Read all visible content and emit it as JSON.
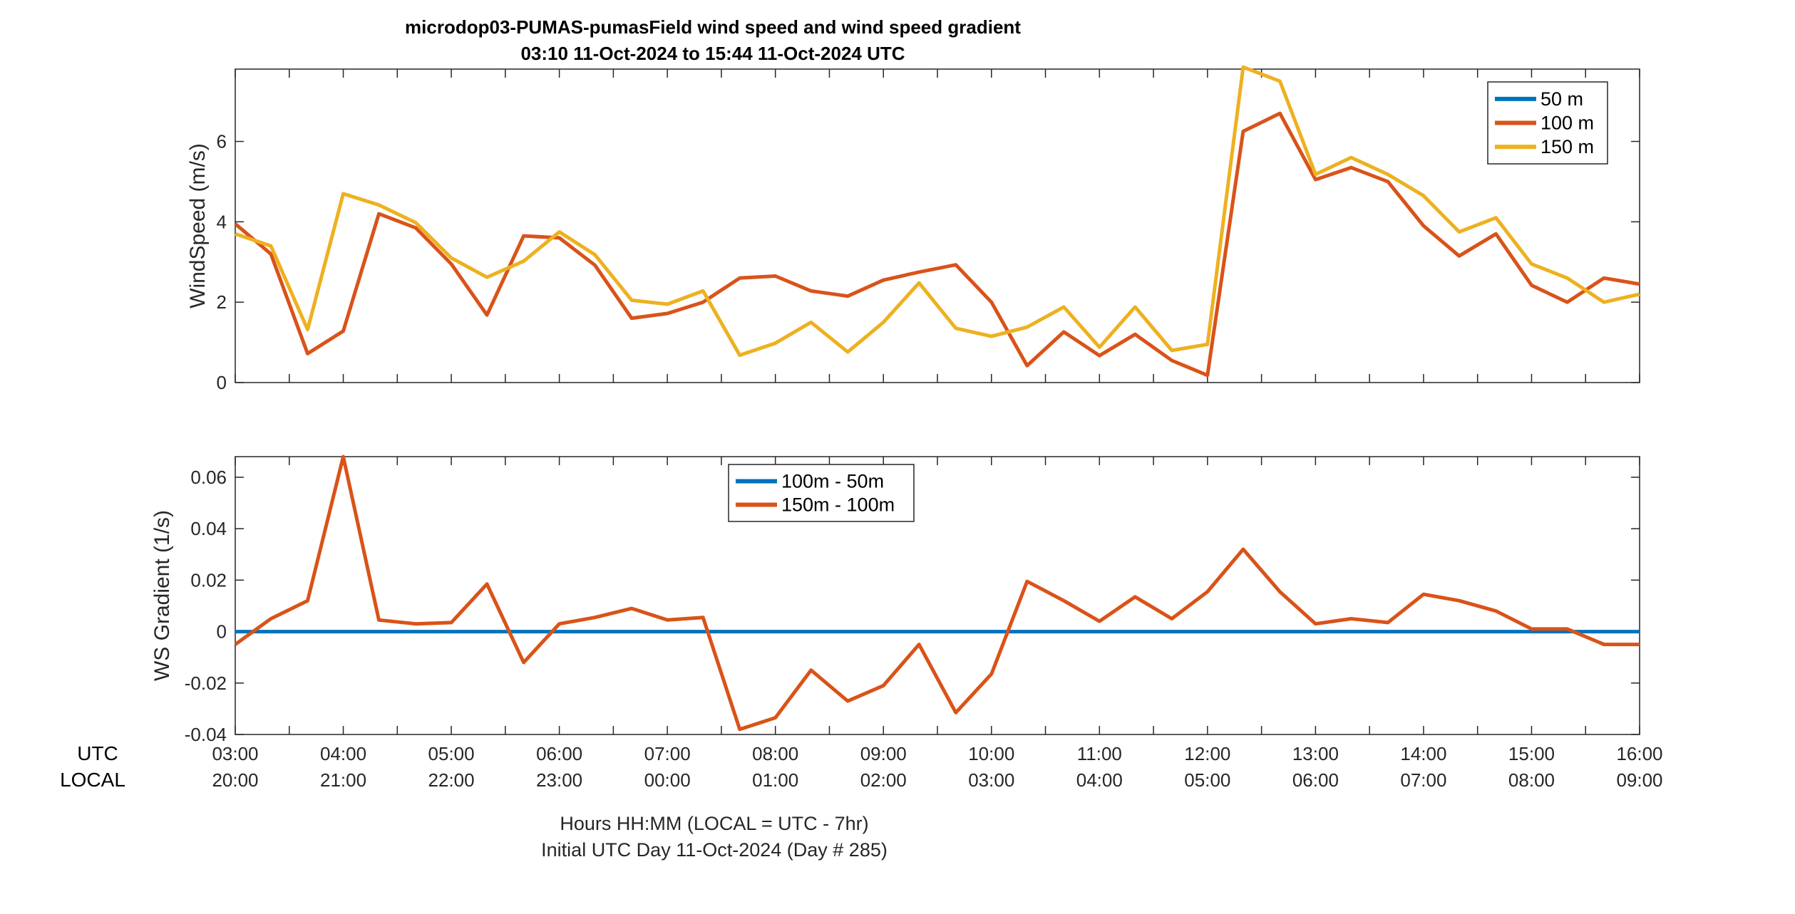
{
  "figure": {
    "title_line1": "microdop03-PUMAS-pumasField  wind speed and wind speed gradient",
    "title_line2": "03:10 11-Oct-2024 to 15:44 11-Oct-2024  UTC",
    "row_label_utc": "UTC",
    "row_label_local": "LOCAL",
    "xlabel_line1": "Hours HH:MM  (LOCAL = UTC - 7hr)",
    "xlabel_line2": "Initial UTC Day 11-Oct-2024 (Day # 285)"
  },
  "chart_data": [
    {
      "type": "line",
      "ylabel": "WindSpeed (m/s)",
      "xlim": [
        3.0,
        16.0
      ],
      "ylim": [
        0,
        7.8
      ],
      "yticks": [
        0,
        2,
        4,
        6
      ],
      "ytick_labels": [
        "0",
        "2",
        "4",
        "6"
      ],
      "grid": false,
      "legend_position": "top-right",
      "series": [
        {
          "name": "50 m",
          "color": "#0072BD",
          "x": [],
          "values": []
        },
        {
          "name": "100 m",
          "color": "#D95319",
          "x": [
            3.0,
            3.33,
            3.67,
            4.0,
            4.33,
            4.67,
            5.0,
            5.33,
            5.67,
            6.0,
            6.33,
            6.67,
            7.0,
            7.33,
            7.67,
            8.0,
            8.33,
            8.67,
            9.0,
            9.33,
            9.67,
            10.0,
            10.33,
            10.67,
            11.0,
            11.33,
            11.67,
            12.0,
            12.33,
            12.67,
            13.0,
            13.33,
            13.67,
            14.0,
            14.33,
            14.67,
            15.0,
            15.33,
            15.67,
            16.0
          ],
          "values": [
            3.95,
            3.2,
            0.72,
            1.28,
            4.2,
            3.85,
            2.95,
            1.68,
            3.65,
            3.6,
            2.92,
            1.6,
            1.72,
            2.0,
            2.6,
            2.65,
            2.28,
            2.15,
            2.55,
            2.75,
            2.93,
            2.0,
            0.42,
            1.26,
            0.67,
            1.2,
            0.55,
            0.18,
            6.25,
            6.7,
            5.05,
            5.35,
            5.0,
            3.9,
            3.15,
            3.7,
            2.42,
            2.0,
            2.6,
            2.45
          ]
        },
        {
          "name": "150 m",
          "color": "#EDB120",
          "x": [
            3.0,
            3.33,
            3.67,
            4.0,
            4.33,
            4.67,
            5.0,
            5.33,
            5.67,
            6.0,
            6.33,
            6.67,
            7.0,
            7.33,
            7.67,
            8.0,
            8.33,
            8.67,
            9.0,
            9.33,
            9.67,
            10.0,
            10.33,
            10.67,
            11.0,
            11.33,
            11.67,
            12.0,
            12.33,
            12.67,
            13.0,
            13.33,
            13.67,
            14.0,
            14.33,
            14.67,
            15.0,
            15.33,
            15.67,
            16.0
          ],
          "values": [
            3.7,
            3.4,
            1.32,
            4.7,
            4.42,
            3.98,
            3.1,
            2.62,
            3.02,
            3.75,
            3.18,
            2.05,
            1.95,
            2.28,
            0.68,
            0.98,
            1.5,
            0.76,
            1.5,
            2.48,
            1.35,
            1.15,
            1.38,
            1.88,
            0.88,
            1.88,
            0.8,
            0.95,
            7.85,
            7.5,
            5.18,
            5.6,
            5.18,
            4.65,
            3.75,
            4.1,
            2.95,
            2.6,
            2.0,
            2.2
          ]
        }
      ]
    },
    {
      "type": "line",
      "ylabel": "WS Gradient (1/s)",
      "xlim": [
        3.0,
        16.0
      ],
      "ylim": [
        -0.04,
        0.068
      ],
      "yticks": [
        -0.04,
        -0.02,
        0,
        0.02,
        0.04,
        0.06
      ],
      "ytick_labels": [
        "-0.04",
        "-0.02",
        "0",
        "0.02",
        "0.04",
        "0.06"
      ],
      "grid": false,
      "legend_position": "top-center",
      "series": [
        {
          "name": "100m - 50m",
          "color": "#0072BD",
          "x": [
            3.0,
            16.0
          ],
          "values": [
            0,
            0
          ]
        },
        {
          "name": "150m - 100m",
          "color": "#D95319",
          "x": [
            3.0,
            3.33,
            3.67,
            4.0,
            4.33,
            4.67,
            5.0,
            5.33,
            5.67,
            6.0,
            6.33,
            6.67,
            7.0,
            7.33,
            7.67,
            8.0,
            8.33,
            8.67,
            9.0,
            9.33,
            9.67,
            10.0,
            10.33,
            10.67,
            11.0,
            11.33,
            11.67,
            12.0,
            12.33,
            12.67,
            13.0,
            13.33,
            13.67,
            14.0,
            14.33,
            14.67,
            15.0,
            15.33,
            15.67,
            16.0
          ],
          "values": [
            -0.005,
            0.005,
            0.012,
            0.068,
            0.0045,
            0.003,
            0.0035,
            0.0185,
            -0.012,
            0.003,
            0.0055,
            0.009,
            0.0045,
            0.0055,
            -0.038,
            -0.0335,
            -0.015,
            -0.027,
            -0.021,
            -0.005,
            -0.0315,
            -0.0165,
            0.0195,
            0.012,
            0.004,
            0.0135,
            0.005,
            0.0155,
            0.032,
            0.0155,
            0.003,
            0.005,
            0.0035,
            0.0145,
            0.012,
            0.008,
            0.001,
            0.001,
            -0.005,
            -0.005
          ]
        }
      ]
    }
  ],
  "xaxis": {
    "utc_labels": [
      "03:00",
      "04:00",
      "05:00",
      "06:00",
      "07:00",
      "08:00",
      "09:00",
      "10:00",
      "11:00",
      "12:00",
      "13:00",
      "14:00",
      "15:00",
      "16:00"
    ],
    "local_labels": [
      "20:00",
      "21:00",
      "22:00",
      "23:00",
      "00:00",
      "01:00",
      "02:00",
      "03:00",
      "04:00",
      "05:00",
      "06:00",
      "07:00",
      "08:00",
      "09:00"
    ]
  }
}
